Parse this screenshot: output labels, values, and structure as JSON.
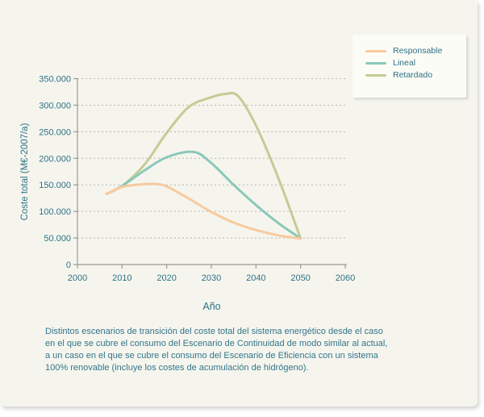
{
  "chart_data": {
    "type": "line",
    "title": "",
    "xlabel": "Año",
    "ylabel": "Coste total (M€-2007/a)",
    "xlim": [
      2000,
      2060
    ],
    "ylim": [
      0,
      350000
    ],
    "x_tick_labels": [
      "2000",
      "2010",
      "2020",
      "2030",
      "2040",
      "2050",
      "2060"
    ],
    "y_tick_labels": [
      "0",
      "50.000",
      "100.000",
      "150.000",
      "200.000",
      "250.000",
      "300.000",
      "350.000"
    ],
    "y_tick_values": [
      0,
      50000,
      100000,
      150000,
      200000,
      250000,
      300000,
      350000
    ],
    "x_tick_values": [
      2000,
      2010,
      2020,
      2030,
      2040,
      2050,
      2060
    ],
    "grid": "horizontal-dashed",
    "legend_position": "top-right-outside",
    "series": [
      {
        "name": "Responsable",
        "color": "#f9ca9d",
        "points": [
          [
            2006.5,
            133000
          ],
          [
            2010,
            146000
          ],
          [
            2013,
            150000
          ],
          [
            2017,
            152000
          ],
          [
            2020,
            147000
          ],
          [
            2025,
            124000
          ],
          [
            2030,
            99000
          ],
          [
            2035,
            79000
          ],
          [
            2040,
            65000
          ],
          [
            2045,
            55000
          ],
          [
            2050,
            49000
          ]
        ]
      },
      {
        "name": "Lineal",
        "color": "#8ac8b9",
        "points": [
          [
            2006.5,
            133000
          ],
          [
            2010,
            148000
          ],
          [
            2015,
            177000
          ],
          [
            2020,
            202000
          ],
          [
            2026,
            212000
          ],
          [
            2030,
            191000
          ],
          [
            2035,
            150000
          ],
          [
            2040,
            112000
          ],
          [
            2045,
            78000
          ],
          [
            2050,
            49000
          ]
        ]
      },
      {
        "name": "Retardado",
        "color": "#c5cb95",
        "points": [
          [
            2006.5,
            133000
          ],
          [
            2010,
            148000
          ],
          [
            2015,
            188000
          ],
          [
            2020,
            248000
          ],
          [
            2025,
            297000
          ],
          [
            2030,
            315000
          ],
          [
            2033,
            321000
          ],
          [
            2036,
            317000
          ],
          [
            2040,
            262000
          ],
          [
            2045,
            163000
          ],
          [
            2050,
            49000
          ]
        ]
      }
    ]
  },
  "caption": {
    "lines": [
      "Distintos escenarios de transición del coste total del sistema energético desde el caso",
      "en el que se cubre el consumo del Escenario de Continuidad de modo similar al actual,",
      "a un caso en el que se cubre el consumo del Escenario de Eficiencia  con un sistema",
      "100% renovable (incluye los costes de acumulación de hidrógeno)."
    ]
  },
  "colors": {
    "page_background": "#ffffff",
    "card_background": "#f5f5ee",
    "legend_background": "#fcfcf6",
    "text_teal": "#2f7287",
    "axis_gray": "#9b9b94",
    "grid_gray": "#b7b7af"
  }
}
